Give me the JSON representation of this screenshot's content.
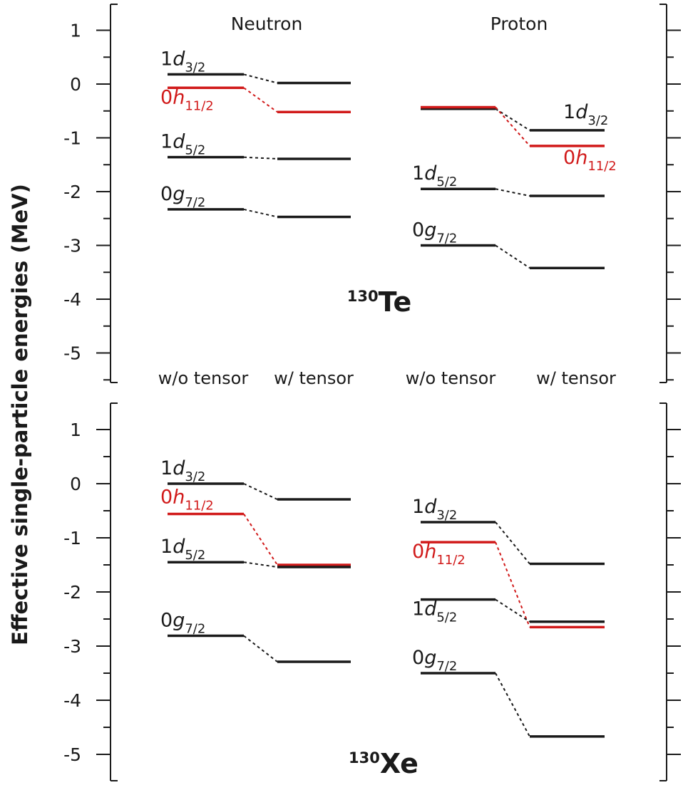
{
  "ylabel": "Effective single-particle energies (MeV)",
  "colors": {
    "black": "#1a1a1a",
    "red": "#d11a1a"
  },
  "chart_data": [
    {
      "type": "level-scheme",
      "nucleus": {
        "mass": "130",
        "symbol": "Te"
      },
      "column_headers": [
        "Neutron",
        "Proton"
      ],
      "column_labels": [
        "w/o tensor",
        "w/ tensor",
        "w/o tensor",
        "w/ tensor"
      ],
      "ylim": [
        -5.5,
        1.5
      ],
      "yticks": [
        1,
        0,
        -1,
        -2,
        -3,
        -4,
        -5
      ],
      "ytick_labels": [
        "1",
        "0",
        "-1",
        "-2",
        "-3",
        "-4",
        "-5"
      ],
      "groups": [
        {
          "name": "Neutron",
          "levels": [
            {
              "n": "1",
              "l": "d",
              "j": "3/2",
              "without_tensor": 0.18,
              "with_tensor": 0.02,
              "color": "black",
              "label_side": "left"
            },
            {
              "n": "0",
              "l": "h",
              "j": "11/2",
              "without_tensor": -0.07,
              "with_tensor": -0.52,
              "color": "red",
              "label_side": "left"
            },
            {
              "n": "1",
              "l": "d",
              "j": "5/2",
              "without_tensor": -1.36,
              "with_tensor": -1.39,
              "color": "black",
              "label_side": "left"
            },
            {
              "n": "0",
              "l": "g",
              "j": "7/2",
              "without_tensor": -2.33,
              "with_tensor": -2.47,
              "color": "black",
              "label_side": "left"
            }
          ]
        },
        {
          "name": "Proton",
          "levels": [
            {
              "n": "1",
              "l": "d",
              "j": "3/2",
              "without_tensor": -0.46,
              "with_tensor": -0.86,
              "color": "black",
              "label_side": "right"
            },
            {
              "n": "0",
              "l": "h",
              "j": "11/2",
              "without_tensor": -0.43,
              "with_tensor": -1.15,
              "color": "red",
              "label_side": "right"
            },
            {
              "n": "1",
              "l": "d",
              "j": "5/2",
              "without_tensor": -1.95,
              "with_tensor": -2.08,
              "color": "black",
              "label_side": "left"
            },
            {
              "n": "0",
              "l": "g",
              "j": "7/2",
              "without_tensor": -3.0,
              "with_tensor": -3.42,
              "color": "black",
              "label_side": "left"
            }
          ]
        }
      ]
    },
    {
      "type": "level-scheme",
      "nucleus": {
        "mass": "130",
        "symbol": "Xe"
      },
      "column_headers": [],
      "column_labels": [],
      "ylim": [
        -5.5,
        1.5
      ],
      "yticks": [
        1,
        0,
        -1,
        -2,
        -3,
        -4,
        -5
      ],
      "ytick_labels": [
        "1",
        "0",
        "-1",
        "-2",
        "-3",
        "-4",
        "-5"
      ],
      "groups": [
        {
          "name": "Neutron",
          "levels": [
            {
              "n": "1",
              "l": "d",
              "j": "3/2",
              "without_tensor": 0.0,
              "with_tensor": -0.29,
              "color": "black",
              "label_side": "left"
            },
            {
              "n": "0",
              "l": "h",
              "j": "11/2",
              "without_tensor": -0.56,
              "with_tensor": -1.5,
              "color": "red",
              "label_side": "left"
            },
            {
              "n": "1",
              "l": "d",
              "j": "5/2",
              "without_tensor": -1.45,
              "with_tensor": -1.54,
              "color": "black",
              "label_side": "left"
            },
            {
              "n": "0",
              "l": "g",
              "j": "7/2",
              "without_tensor": -2.81,
              "with_tensor": -3.29,
              "color": "black",
              "label_side": "left"
            }
          ]
        },
        {
          "name": "Proton",
          "levels": [
            {
              "n": "1",
              "l": "d",
              "j": "3/2",
              "without_tensor": -0.71,
              "with_tensor": -1.48,
              "color": "black",
              "label_side": "left"
            },
            {
              "n": "0",
              "l": "h",
              "j": "11/2",
              "without_tensor": -1.08,
              "with_tensor": -2.65,
              "color": "red",
              "label_side": "left"
            },
            {
              "n": "1",
              "l": "d",
              "j": "5/2",
              "without_tensor": -2.14,
              "with_tensor": -2.55,
              "color": "black",
              "label_side": "left"
            },
            {
              "n": "0",
              "l": "g",
              "j": "7/2",
              "without_tensor": -3.5,
              "with_tensor": -4.67,
              "color": "black",
              "label_side": "left"
            }
          ]
        }
      ]
    }
  ]
}
